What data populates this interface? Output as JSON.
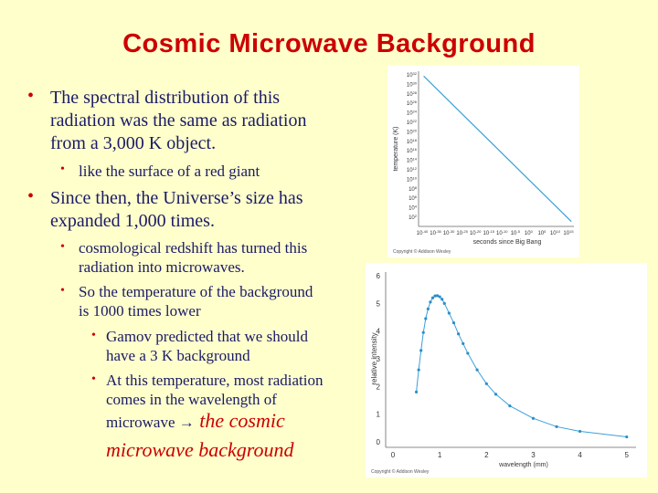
{
  "slide": {
    "title": "Cosmic Microwave Background",
    "bullets": {
      "b1_l1": "The spectral distribution of this",
      "b1_l2": "radiation was the same as radiation",
      "b1_l3": "from a 3,000 K object.",
      "b1_sub": "like the surface of a red giant",
      "b2_l1": "Since then, the Universe’s size has",
      "b2_l2": "expanded  1,000 times.",
      "b2_sub1_l1": "cosmological redshift has turned this",
      "b2_sub1_l2": "radiation into microwaves.",
      "b2_sub2_l1": "So the temperature of the background",
      "b2_sub2_l2": "is 1000 times lower",
      "b3_sub1_l1": "Gamov predicted that we should",
      "b3_sub1_l2": "have a 3 K background",
      "b3_sub2_l1": "At this temperature, most radiation",
      "b3_sub2_l2": "comes in the wavelength of",
      "b3_sub2_l3_a": "microwave ",
      "b3_sub2_l3_arrow": "→",
      "b3_sub2_l3_b": " the cosmic",
      "b3_sub2_l4": "microwave background"
    }
  },
  "chart_data": [
    {
      "type": "line",
      "title": "",
      "xlabel": "seconds since Big Bang",
      "ylabel": "temperature (K)",
      "x_scale": "log",
      "y_scale": "log",
      "x_ticks": [
        "10^-40",
        "10^-35",
        "10^-30",
        "10^-25",
        "10^-20",
        "10^-15",
        "10^-10",
        "10^-5",
        "10^0",
        "10^5",
        "10^10",
        "10^15"
      ],
      "y_ticks": [
        "10^32",
        "10^30",
        "10^28",
        "10^26",
        "10^24",
        "10^22",
        "10^20",
        "10^18",
        "10^16",
        "10^14",
        "10^12",
        "10^10",
        "10^8",
        "10^6",
        "10^4",
        "10^2"
      ],
      "series": [
        {
          "x": [
            -43,
            15
          ],
          "y": [
            32,
            2
          ]
        }
      ],
      "credit": "Copyright © Addison Wesley"
    },
    {
      "type": "scatter",
      "title": "",
      "xlabel": "wavelength (mm)",
      "ylabel": "relative intensity",
      "xlim": [
        0,
        5.2
      ],
      "ylim": [
        0,
        6
      ],
      "x_ticks": [
        0,
        1,
        2,
        3,
        4,
        5
      ],
      "y_ticks": [
        0,
        1,
        2,
        3,
        4,
        5,
        6
      ],
      "series": [
        {
          "x": [
            0.5,
            0.55,
            0.6,
            0.65,
            0.7,
            0.75,
            0.8,
            0.85,
            0.9,
            0.95,
            1.0,
            1.05,
            1.1,
            1.2,
            1.3,
            1.4,
            1.5,
            1.6,
            1.8,
            2.0,
            2.2,
            2.5,
            3.0,
            3.5,
            4.0,
            5.0
          ],
          "y": [
            1.8,
            2.6,
            3.3,
            3.95,
            4.45,
            4.8,
            5.05,
            5.2,
            5.27,
            5.28,
            5.24,
            5.15,
            5.0,
            4.65,
            4.3,
            3.9,
            3.55,
            3.2,
            2.6,
            2.1,
            1.72,
            1.3,
            0.85,
            0.55,
            0.38,
            0.18
          ]
        }
      ],
      "credit": "Copyright © Addison Wesley"
    }
  ]
}
